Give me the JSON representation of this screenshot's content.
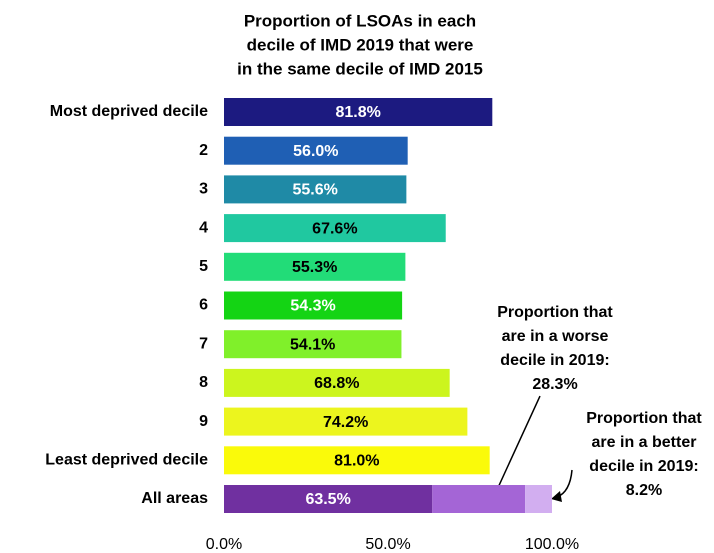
{
  "chart_data": {
    "type": "bar",
    "orientation": "horizontal",
    "title_lines": [
      "Proportion of LSOAs in each",
      "decile of IMD 2019 that were",
      "in the same decile of IMD 2015"
    ],
    "categories": [
      "Most deprived decile",
      "2",
      "3",
      "4",
      "5",
      "6",
      "7",
      "8",
      "9",
      "Least deprived decile",
      "All areas"
    ],
    "values": [
      81.8,
      56.0,
      55.6,
      67.6,
      55.3,
      54.3,
      54.1,
      68.8,
      74.2,
      81.0,
      63.5
    ],
    "value_labels": [
      "81.8%",
      "56.0%",
      "55.6%",
      "67.6%",
      "55.3%",
      "54.3%",
      "54.1%",
      "68.8%",
      "74.2%",
      "81.0%",
      "63.5%"
    ],
    "colors": [
      "#1c1a80",
      "#1f5fb4",
      "#1f8aa6",
      "#20c8a0",
      "#22dc78",
      "#14d414",
      "#80f02a",
      "#ccf51e",
      "#ecf51e",
      "#fafa0a",
      "#7030a0"
    ],
    "stacked_segments": [
      {
        "value": 28.3,
        "value_label": "28.3%",
        "color": "#a465d6",
        "label_lines": [
          "Proportion that",
          "are in a worse",
          "decile in 2019:"
        ]
      },
      {
        "value": 8.2,
        "value_label": "8.2%",
        "color": "#d2aef0",
        "label_lines": [
          "Proportion that",
          "are in a better",
          "decile in 2019:"
        ]
      }
    ],
    "xlim": [
      0,
      100
    ],
    "xticks": [
      {
        "value": 0,
        "label": "0.0%"
      },
      {
        "value": 50,
        "label": "50.0%"
      },
      {
        "value": 100,
        "label": "100.0%"
      }
    ]
  }
}
